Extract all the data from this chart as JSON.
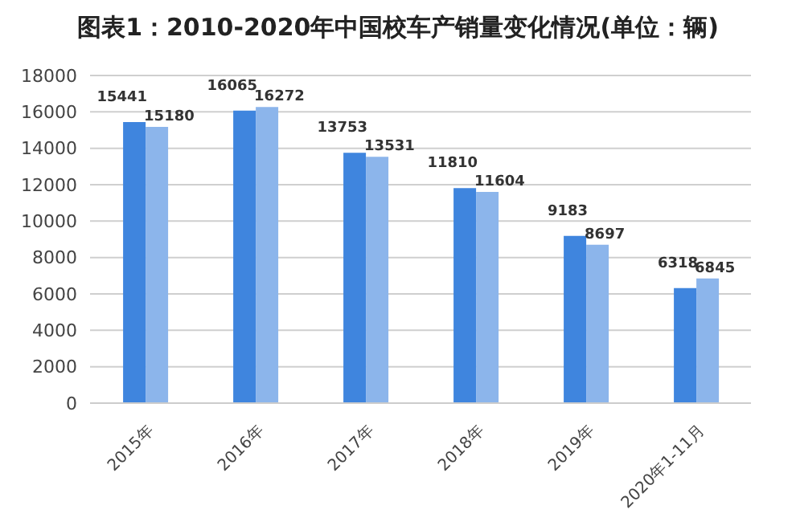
{
  "chart_data": {
    "type": "bar",
    "title": "图表1：2010-2020年中国校车产销量变化情况(单位：辆)",
    "categories": [
      "2015年",
      "2016年",
      "2017年",
      "2018年",
      "2019年",
      "2020年1-11月"
    ],
    "series": [
      {
        "color": "#3f85de",
        "values": [
          15441,
          16065,
          13753,
          11810,
          9183,
          6318
        ]
      },
      {
        "color": "#8cb5eb",
        "values": [
          15180,
          16272,
          13531,
          11604,
          8697,
          6845
        ]
      }
    ],
    "ylim": [
      0,
      18000
    ],
    "yticks": [
      0,
      2000,
      4000,
      6000,
      8000,
      10000,
      12000,
      14000,
      16000,
      18000
    ],
    "grid": "y",
    "data_labels": true
  }
}
